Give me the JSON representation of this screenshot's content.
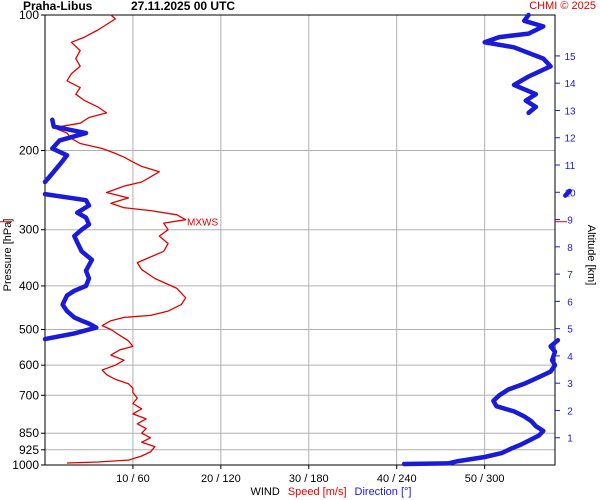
{
  "header": {
    "station": "Praha-Libus",
    "datetime": "27.11.2025 00 UTC",
    "credit": "CHMI © 2025"
  },
  "colors": {
    "speed": "#e00000",
    "direction": "#1a1adb",
    "grid": "#b0b0b0"
  },
  "chart_data": {
    "type": "line",
    "title": "Praha-Libus 27.11.2025 00 UTC",
    "ylabel": "Pressure [hPa]",
    "y2label": "Altitude [km]",
    "xlabel_parts": [
      {
        "text": "WIND",
        "color": "#000000"
      },
      {
        "text": "Speed [m/s]",
        "color": "#e00000"
      },
      {
        "text": "Direction [°]",
        "color": "#1a1adb"
      }
    ],
    "pressure_ticks": [
      100,
      200,
      300,
      400,
      500,
      600,
      700,
      850,
      925,
      1000
    ],
    "pressure_ticklabels": [
      "100",
      "200",
      "300",
      "400",
      "500",
      "600",
      "700",
      "850",
      "925",
      "1000"
    ],
    "altitude_ticks": [
      1,
      2,
      3,
      4,
      5,
      6,
      7,
      8,
      9,
      10,
      11,
      12,
      13,
      14,
      15
    ],
    "x_ticks": [
      10,
      20,
      30,
      40,
      50
    ],
    "x_ticklabels": [
      "10 / 60",
      "20 / 120",
      "30 / 180",
      "40 / 240",
      "50 / 300"
    ],
    "speed_range": [
      0,
      58
    ],
    "direction_range": [
      0,
      348
    ],
    "pressure_range": [
      100,
      1000
    ],
    "altitude_range": [
      0,
      16.5
    ],
    "annotation": {
      "label": "MXWS",
      "pressure": 288
    },
    "series": [
      {
        "name": "Speed [m/s]",
        "units": "m/s",
        "points": [
          [
            2.5,
            990
          ],
          [
            6,
            985
          ],
          [
            9.5,
            975
          ],
          [
            11,
            955
          ],
          [
            12,
            935
          ],
          [
            12.5,
            910
          ],
          [
            11,
            890
          ],
          [
            12,
            870
          ],
          [
            11,
            850
          ],
          [
            11.5,
            830
          ],
          [
            10.5,
            810
          ],
          [
            11.5,
            790
          ],
          [
            10,
            770
          ],
          [
            11,
            750
          ],
          [
            10,
            730
          ],
          [
            10.5,
            710
          ],
          [
            10,
            690
          ],
          [
            10,
            675
          ],
          [
            9.5,
            660
          ],
          [
            8,
            645
          ],
          [
            7,
            630
          ],
          [
            6.5,
            615
          ],
          [
            8,
            600
          ],
          [
            9,
            585
          ],
          [
            7.5,
            570
          ],
          [
            8.5,
            555
          ],
          [
            10,
            545
          ],
          [
            9.5,
            530
          ],
          [
            8.5,
            515
          ],
          [
            7.5,
            500
          ],
          [
            6.5,
            490
          ],
          [
            7.5,
            478
          ],
          [
            9,
            470
          ],
          [
            12,
            465
          ],
          [
            14,
            455
          ],
          [
            15.5,
            440
          ],
          [
            16,
            425
          ],
          [
            15,
            405
          ],
          [
            12.5,
            385
          ],
          [
            11,
            368
          ],
          [
            10.5,
            355
          ],
          [
            12,
            345
          ],
          [
            13.5,
            335
          ],
          [
            14,
            322
          ],
          [
            13,
            310
          ],
          [
            14,
            300
          ],
          [
            13.5,
            290
          ],
          [
            16,
            285
          ],
          [
            15,
            278
          ],
          [
            12,
            272
          ],
          [
            9,
            268
          ],
          [
            7.5,
            262
          ],
          [
            9.5,
            255
          ],
          [
            7,
            248
          ],
          [
            9,
            240
          ],
          [
            11,
            235
          ],
          [
            12,
            229
          ],
          [
            13,
            223
          ],
          [
            11,
            217
          ],
          [
            10,
            212
          ],
          [
            9,
            207
          ],
          [
            8,
            203
          ],
          [
            6.5,
            198
          ],
          [
            4,
            193
          ],
          [
            3,
            188
          ],
          [
            2.5,
            183
          ],
          [
            1,
            178
          ],
          [
            4,
            174
          ],
          [
            5,
            169
          ],
          [
            7,
            165
          ],
          [
            6,
            160
          ],
          [
            4.5,
            155
          ],
          [
            3.5,
            150
          ],
          [
            4,
            145
          ],
          [
            2.5,
            140
          ],
          [
            3,
            135
          ],
          [
            4,
            130
          ],
          [
            3.5,
            125
          ],
          [
            4,
            120
          ],
          [
            3,
            115
          ],
          [
            4.5,
            112
          ],
          [
            6,
            108
          ],
          [
            7,
            105
          ],
          [
            8,
            102
          ],
          [
            7.5,
            100
          ]
        ]
      },
      {
        "name": "Direction [°]",
        "units": "deg",
        "points": [
          [
            245,
            995
          ],
          [
            275,
            992
          ],
          [
            282,
            980
          ],
          [
            300,
            960
          ],
          [
            312,
            940
          ],
          [
            318,
            920
          ],
          [
            325,
            900
          ],
          [
            331,
            880
          ],
          [
            337,
            860
          ],
          [
            340,
            840
          ],
          [
            335,
            820
          ],
          [
            332,
            800
          ],
          [
            327,
            780
          ],
          [
            320,
            760
          ],
          [
            308,
            740
          ],
          [
            306,
            720
          ],
          [
            310,
            700
          ],
          [
            316,
            680
          ],
          [
            327,
            660
          ],
          [
            336,
            640
          ],
          [
            345,
            620
          ],
          [
            348,
            600
          ],
          [
            346,
            585
          ],
          [
            348,
            560
          ],
          [
            345,
            545
          ],
          [
            350,
            528
          ],
          [
            0,
            525
          ],
          [
            20,
            510
          ],
          [
            35,
            495
          ],
          [
            30,
            485
          ],
          [
            25,
            478
          ],
          [
            20,
            470
          ],
          [
            15,
            455
          ],
          [
            12,
            440
          ],
          [
            15,
            420
          ],
          [
            20,
            410
          ],
          [
            28,
            400
          ],
          [
            30,
            385
          ],
          [
            28,
            370
          ],
          [
            32,
            350
          ],
          [
            25,
            335
          ],
          [
            22,
            320
          ],
          [
            20,
            310
          ],
          [
            25,
            300
          ],
          [
            30,
            292
          ],
          [
            28,
            282
          ],
          [
            22,
            275
          ],
          [
            30,
            265
          ],
          [
            28,
            258
          ],
          [
            0,
            250
          ],
          [
            358,
            246
          ],
          [
            355,
            252
          ],
          [
            0,
            235
          ],
          [
            5,
            225
          ],
          [
            10,
            215
          ],
          [
            15,
            205
          ],
          [
            5,
            198
          ],
          [
            10,
            190
          ],
          [
            28,
            183
          ],
          [
            6,
            177
          ],
          [
            5,
            171
          ],
          [
            330,
            165
          ],
          [
            335,
            160
          ],
          [
            328,
            155
          ],
          [
            335,
            150
          ],
          [
            320,
            143
          ],
          [
            330,
            137
          ],
          [
            345,
            130
          ],
          [
            340,
            125
          ],
          [
            320,
            118
          ],
          [
            300,
            115
          ],
          [
            310,
            112
          ],
          [
            330,
            110
          ],
          [
            340,
            106
          ],
          [
            327,
            103
          ],
          [
            330,
            100
          ]
        ]
      }
    ]
  }
}
